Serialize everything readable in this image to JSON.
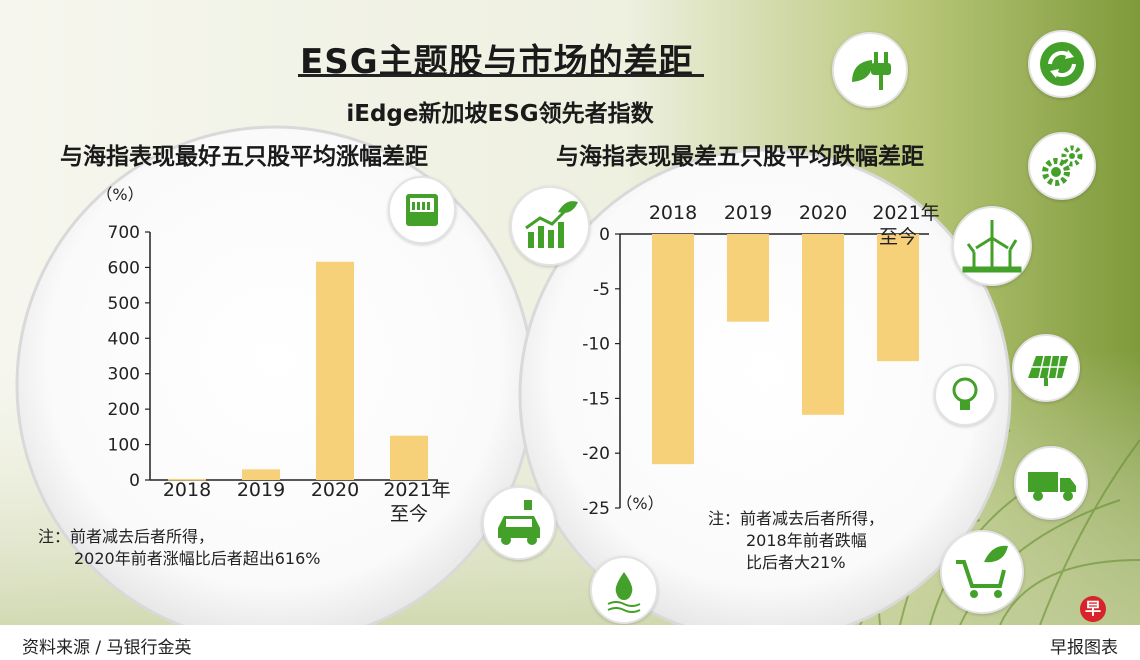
{
  "title": "ESG主题股与市场的差距",
  "subtitle": "iEdge新加坡ESG领先者指数",
  "footer": {
    "source": "资料来源 / 马银行金英",
    "brand": "早报图表",
    "logo_char": "早"
  },
  "colors": {
    "bar": "#f7d07a",
    "axis": "#222222",
    "accent_green": "#43a029"
  },
  "icons": [
    "plug-leaf-icon",
    "recycle-icon",
    "gears-icon",
    "wind-turbine-icon",
    "solar-panel-icon",
    "lightbulb-icon",
    "truck-icon",
    "shopping-cart-leaf-icon",
    "electric-car-icon",
    "water-drop-icon",
    "growth-chart-leaf-icon",
    "meter-icon"
  ],
  "chart_data": [
    {
      "type": "bar",
      "title": "与海指表现最好五只股平均涨幅差距",
      "categories": [
        "2018",
        "2019",
        "2020",
        "2021年\n至今"
      ],
      "values": [
        3,
        30,
        616,
        125
      ],
      "ylabel": "（%）",
      "ylim": [
        0,
        700
      ],
      "yticks": [
        0,
        100,
        200,
        300,
        400,
        500,
        600,
        700
      ],
      "grid": false,
      "note": [
        "注：前者减去后者所得，",
        "2020年前者涨幅比后者超出616%"
      ]
    },
    {
      "type": "bar",
      "title": "与海指表现最差五只股平均跌幅差距",
      "categories": [
        "2018",
        "2019",
        "2020",
        "2021年\n至今"
      ],
      "values": [
        -21,
        -8,
        -16.5,
        -11.6
      ],
      "ylabel": "（%）",
      "ylim": [
        -25,
        0
      ],
      "yticks": [
        0,
        -5,
        -10,
        -15,
        -20,
        -25
      ],
      "grid": false,
      "note": [
        "注：前者减去后者所得，",
        "2018年前者跌幅",
        "比后者大21%"
      ]
    }
  ]
}
